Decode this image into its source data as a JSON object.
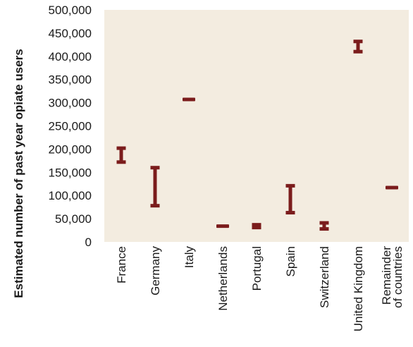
{
  "chart_data": {
    "type": "range",
    "title": "",
    "xlabel": "",
    "ylabel": "Estimated number of past year opiate users",
    "ylim": [
      0,
      500000
    ],
    "yticks": [
      0,
      50000,
      100000,
      150000,
      200000,
      250000,
      300000,
      350000,
      400000,
      450000,
      500000
    ],
    "ytick_labels": [
      "0",
      "50,000",
      "100,000",
      "150,000",
      "200,000",
      "250,000",
      "300,000",
      "350,000",
      "400,000",
      "450,000",
      "500,000"
    ],
    "grid": false,
    "categories": [
      {
        "label": [
          "France"
        ],
        "low": 172000,
        "high": 202000
      },
      {
        "label": [
          "Germany"
        ],
        "low": 78000,
        "high": 160000
      },
      {
        "label": [
          "Italy"
        ],
        "low": 307000,
        "high": 307000
      },
      {
        "label": [
          "Netherlands"
        ],
        "low": 34000,
        "high": 34000
      },
      {
        "label": [
          "Portugal"
        ],
        "low": 31000,
        "high": 37000
      },
      {
        "label": [
          "Spain"
        ],
        "low": 63000,
        "high": 121000
      },
      {
        "label": [
          "Switzerland"
        ],
        "low": 28000,
        "high": 41000
      },
      {
        "label": [
          "United Kingdom"
        ],
        "low": 410000,
        "high": 432000
      },
      {
        "label": [
          "Remainder",
          "of countries"
        ],
        "low": 116000,
        "high": 118000
      }
    ],
    "colors": {
      "plot_bg": "#f3ece0",
      "mark": "#7b1c1c"
    }
  }
}
